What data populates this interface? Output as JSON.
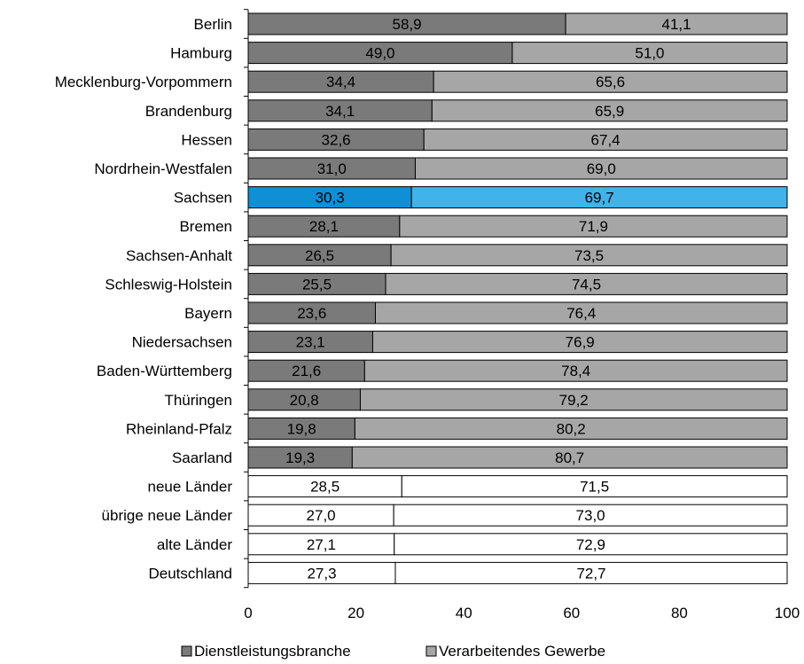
{
  "chart_data": {
    "type": "bar",
    "orientation": "horizontal",
    "stacked": true,
    "categories": [
      "Berlin",
      "Hamburg",
      "Mecklenburg-Vorpommern",
      "Brandenburg",
      "Hessen",
      "Nordrhein-Westfalen",
      "Sachsen",
      "Bremen",
      "Sachsen-Anhalt",
      "Schleswig-Holstein",
      "Bayern",
      "Niedersachsen",
      "Baden-Württemberg",
      "Thüringen",
      "Rheinland-Pfalz",
      "Saarland",
      "neue Länder",
      "übrige neue Länder",
      "alte Länder",
      "Deutschland"
    ],
    "series": [
      {
        "name": "Dienstleistungsbranche",
        "values": [
          58.9,
          49.0,
          34.4,
          34.1,
          32.6,
          31.0,
          30.3,
          28.1,
          26.5,
          25.5,
          23.6,
          23.1,
          21.6,
          20.8,
          19.8,
          19.3,
          28.5,
          27.0,
          27.1,
          27.3
        ],
        "labels": [
          "58,9",
          "49,0",
          "34,4",
          "34,1",
          "32,6",
          "31,0",
          "30,3",
          "28,1",
          "26,5",
          "25,5",
          "23,6",
          "23,1",
          "21,6",
          "20,8",
          "19,8",
          "19,3",
          "28,5",
          "27,0",
          "27,1",
          "27,3"
        ],
        "color": "#7a7a7a"
      },
      {
        "name": "Verarbeitendes Gewerbe",
        "values": [
          41.1,
          51.0,
          65.6,
          65.9,
          67.4,
          69.0,
          69.7,
          71.9,
          73.5,
          74.5,
          76.4,
          76.9,
          78.4,
          79.2,
          80.2,
          80.7,
          71.5,
          73.0,
          72.9,
          72.7
        ],
        "labels": [
          "41,1",
          "51,0",
          "65,6",
          "65,9",
          "67,4",
          "69,0",
          "69,7",
          "71,9",
          "73,5",
          "74,5",
          "76,4",
          "76,9",
          "78,4",
          "79,2",
          "80,2",
          "80,7",
          "71,5",
          "73,0",
          "72,9",
          "72,7"
        ],
        "color": "#a6a6a6"
      }
    ],
    "highlight": {
      "category": "Sachsen",
      "colors": [
        "#0f8fd6",
        "#3fb3ea"
      ]
    },
    "aggregate_categories": [
      "neue Länder",
      "übrige neue Länder",
      "alte Länder",
      "Deutschland"
    ],
    "aggregate_fill": "#ffffff",
    "xlim": [
      0,
      100
    ],
    "xticks": [
      "0",
      "20",
      "40",
      "60",
      "80",
      "100"
    ],
    "xlabel": "",
    "ylabel": "",
    "title": "",
    "grid": false,
    "legend": {
      "position": "bottom",
      "entries": [
        "Dienstleistungsbranche",
        "Verarbeitendes Gewerbe"
      ]
    }
  }
}
